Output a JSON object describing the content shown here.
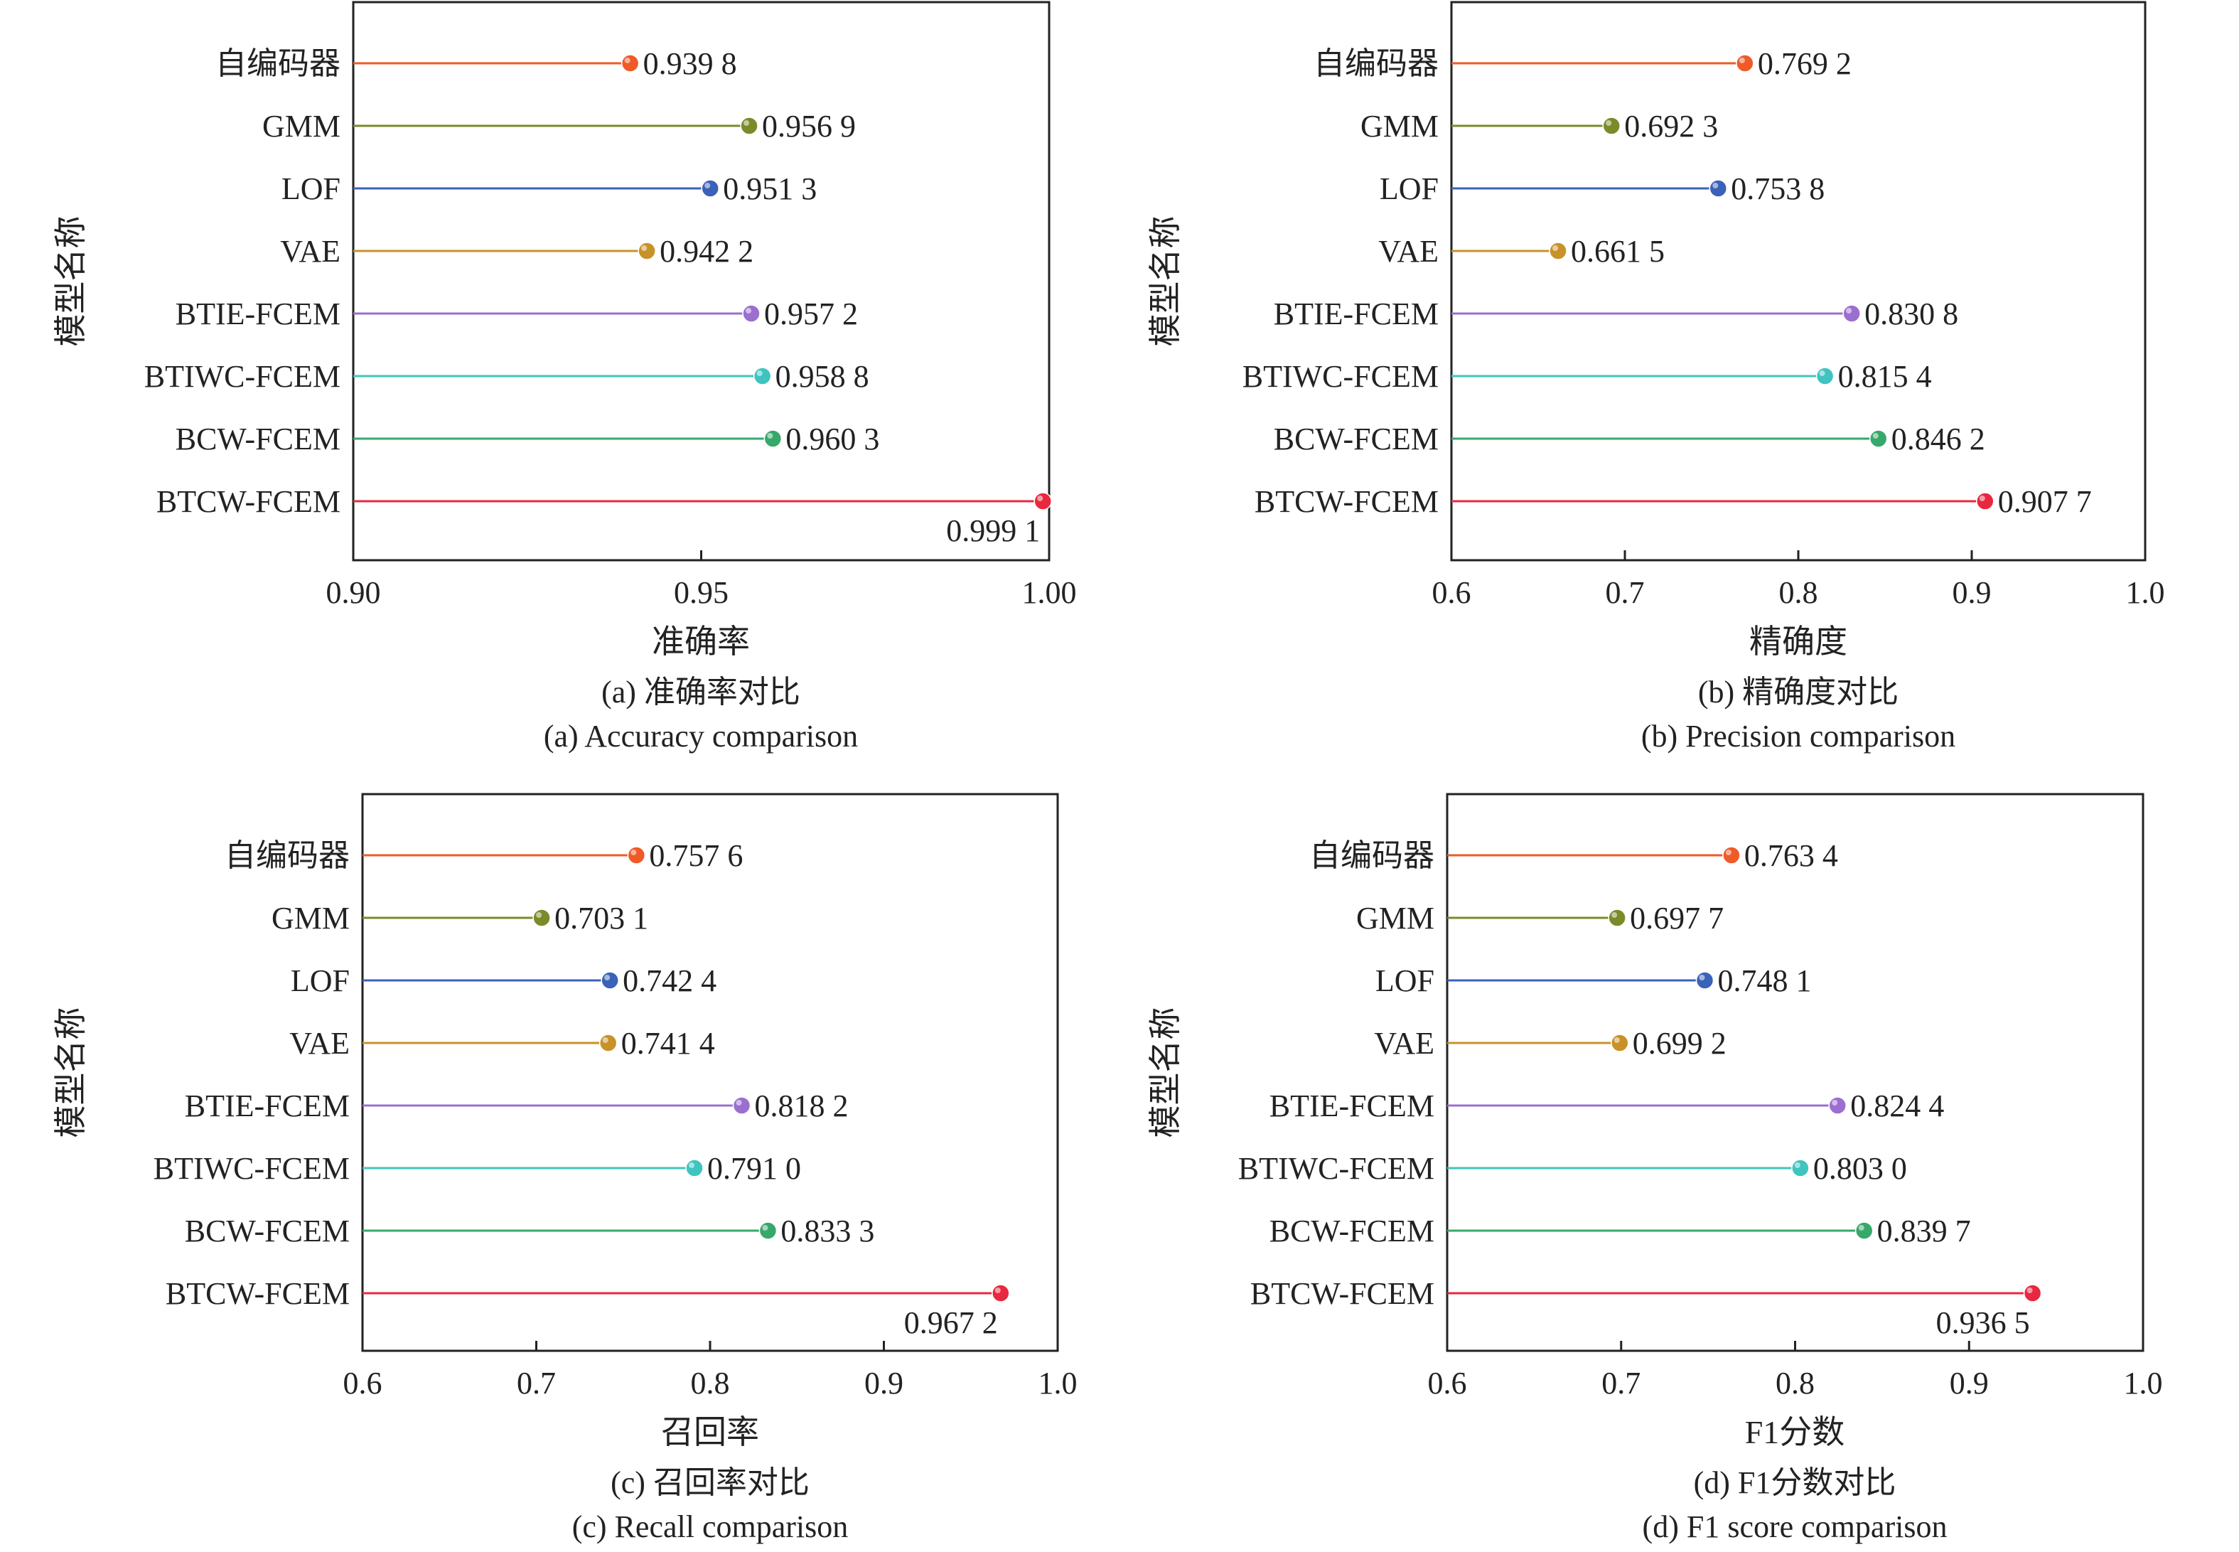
{
  "chart_data": [
    {
      "type": "lollipop",
      "ylabel": "模型名称",
      "xlabel": "准确率",
      "caption_cn": "(a) 准确率对比",
      "caption_en": "(a) Accuracy comparison",
      "xlim": [
        0.9,
        1.0
      ],
      "xticks": [
        "0.90",
        "0.95",
        "1.00"
      ],
      "categories": [
        "自编码器",
        "GMM",
        "LOF",
        "VAE",
        "BTIE-FCEM",
        "BTIWC-FCEM",
        "BCW-FCEM",
        "BTCW-FCEM"
      ],
      "values": [
        0.9398,
        0.9569,
        0.9513,
        0.9422,
        0.9572,
        0.9588,
        0.9603,
        0.9991
      ],
      "value_labels": [
        "0.939 8",
        "0.956 9",
        "0.951 3",
        "0.942 2",
        "0.957 2",
        "0.958 8",
        "0.960 3",
        "0.999 1"
      ]
    },
    {
      "type": "lollipop",
      "ylabel": "模型名称",
      "xlabel": "精确度",
      "caption_cn": "(b) 精确度对比",
      "caption_en": "(b) Precision comparison",
      "xlim": [
        0.6,
        1.0
      ],
      "xticks": [
        "0.6",
        "0.7",
        "0.8",
        "0.9",
        "1.0"
      ],
      "categories": [
        "自编码器",
        "GMM",
        "LOF",
        "VAE",
        "BTIE-FCEM",
        "BTIWC-FCEM",
        "BCW-FCEM",
        "BTCW-FCEM"
      ],
      "values": [
        0.7692,
        0.6923,
        0.7538,
        0.6615,
        0.8308,
        0.8154,
        0.8462,
        0.9077
      ],
      "value_labels": [
        "0.769 2",
        "0.692 3",
        "0.753 8",
        "0.661 5",
        "0.830 8",
        "0.815 4",
        "0.846 2",
        "0.907 7"
      ]
    },
    {
      "type": "lollipop",
      "ylabel": "模型名称",
      "xlabel": "召回率",
      "caption_cn": "(c) 召回率对比",
      "caption_en": "(c) Recall comparison",
      "xlim": [
        0.6,
        1.0
      ],
      "xticks": [
        "0.6",
        "0.7",
        "0.8",
        "0.9",
        "1.0"
      ],
      "categories": [
        "自编码器",
        "GMM",
        "LOF",
        "VAE",
        "BTIE-FCEM",
        "BTIWC-FCEM",
        "BCW-FCEM",
        "BTCW-FCEM"
      ],
      "values": [
        0.7576,
        0.7031,
        0.7424,
        0.7414,
        0.8182,
        0.791,
        0.8333,
        0.9672
      ],
      "value_labels": [
        "0.757 6",
        "0.703 1",
        "0.742 4",
        "0.741 4",
        "0.818 2",
        "0.791 0",
        "0.833 3",
        "0.967 2"
      ]
    },
    {
      "type": "lollipop",
      "ylabel": "模型名称",
      "xlabel": "F1分数",
      "caption_cn": "(d) F1分数对比",
      "caption_en": "(d) F1 score comparison",
      "xlim": [
        0.6,
        1.0
      ],
      "xticks": [
        "0.6",
        "0.7",
        "0.8",
        "0.9",
        "1.0"
      ],
      "categories": [
        "自编码器",
        "GMM",
        "LOF",
        "VAE",
        "BTIE-FCEM",
        "BTIWC-FCEM",
        "BCW-FCEM",
        "BTCW-FCEM"
      ],
      "values": [
        0.7634,
        0.6977,
        0.7481,
        0.6992,
        0.8244,
        0.803,
        0.8397,
        0.9365
      ],
      "value_labels": [
        "0.763 4",
        "0.697 7",
        "0.748 1",
        "0.699 2",
        "0.824 4",
        "0.803 0",
        "0.839 7",
        "0.936 5"
      ]
    }
  ],
  "series_colors": [
    "#f05a28",
    "#7c8a2a",
    "#3a62b8",
    "#c89228",
    "#9b6fcf",
    "#3fc4c0",
    "#36a86a",
    "#e8283f"
  ]
}
